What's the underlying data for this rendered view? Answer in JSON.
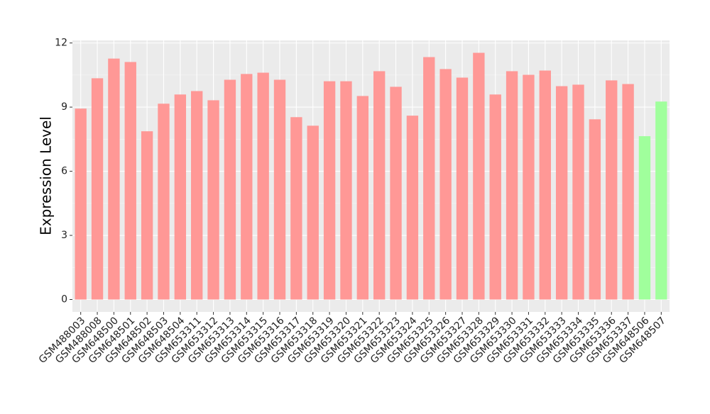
{
  "chart_data": {
    "type": "bar",
    "y_label": "Expression Level",
    "categories": [
      "GSM488003",
      "GSM488008",
      "GSM648500",
      "GSM648501",
      "GSM648502",
      "GSM648503",
      "GSM648504",
      "GSM653311",
      "GSM653312",
      "GSM653313",
      "GSM653314",
      "GSM653315",
      "GSM653316",
      "GSM653317",
      "GSM653318",
      "GSM653319",
      "GSM653320",
      "GSM653321",
      "GSM653322",
      "GSM653323",
      "GSM653324",
      "GSM653325",
      "GSM653326",
      "GSM653327",
      "GSM653328",
      "GSM653329",
      "GSM653330",
      "GSM653331",
      "GSM653332",
      "GSM653333",
      "GSM653334",
      "GSM653335",
      "GSM653336",
      "GSM653337",
      "GSM648506",
      "GSM648507"
    ],
    "values": [
      8.93,
      10.35,
      11.27,
      11.11,
      7.87,
      9.16,
      9.59,
      9.75,
      9.32,
      10.28,
      10.55,
      10.61,
      10.28,
      8.53,
      8.13,
      10.21,
      10.21,
      9.52,
      10.68,
      9.95,
      8.6,
      11.34,
      10.78,
      10.38,
      11.54,
      9.59,
      10.68,
      10.51,
      10.71,
      9.98,
      10.05,
      8.43,
      10.25,
      10.08,
      7.64,
      9.26
    ],
    "colors": [
      "#ff9896",
      "#ff9896",
      "#ff9896",
      "#ff9896",
      "#ff9896",
      "#ff9896",
      "#ff9896",
      "#ff9896",
      "#ff9896",
      "#ff9896",
      "#ff9896",
      "#ff9896",
      "#ff9896",
      "#ff9896",
      "#ff9896",
      "#ff9896",
      "#ff9896",
      "#ff9896",
      "#ff9896",
      "#ff9896",
      "#ff9896",
      "#ff9896",
      "#ff9896",
      "#ff9896",
      "#ff9896",
      "#ff9896",
      "#ff9896",
      "#ff9896",
      "#ff9896",
      "#ff9896",
      "#ff9896",
      "#ff9896",
      "#ff9896",
      "#ff9896",
      "#a0ff9c",
      "#a0ff9c"
    ],
    "ylim": [
      -0.58,
      12.12
    ],
    "yticks": [
      0,
      3,
      6,
      9,
      12
    ],
    "grid": true
  }
}
